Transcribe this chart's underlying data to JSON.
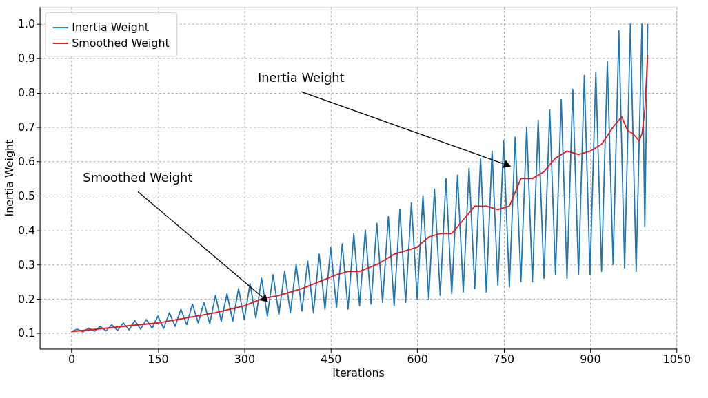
{
  "chart_data": {
    "type": "line",
    "xlabel": "Iterations",
    "ylabel": "Inertia Weight",
    "xlim": [
      -55,
      1050
    ],
    "ylim": [
      0.055,
      1.05
    ],
    "xticks": [
      0,
      150,
      300,
      450,
      600,
      750,
      900,
      {
        "value": 1050,
        "label": "1050"
      }
    ],
    "yticks": [
      0.1,
      0.2,
      0.3,
      0.4,
      0.5,
      0.6,
      0.7,
      0.8,
      0.9,
      {
        "value": 1.0,
        "label": "1.0"
      }
    ],
    "grid": true,
    "legend": "top left",
    "line_style": "solid",
    "marker": "none",
    "series": [
      {
        "name": "Inertia Weight",
        "color": "#1f77b4",
        "x": [
          0,
          10,
          20,
          30,
          40,
          50,
          60,
          70,
          80,
          90,
          100,
          110,
          120,
          130,
          140,
          150,
          160,
          170,
          180,
          190,
          200,
          210,
          220,
          230,
          240,
          250,
          260,
          270,
          280,
          290,
          300,
          310,
          320,
          330,
          340,
          350,
          360,
          370,
          380,
          390,
          400,
          410,
          420,
          430,
          440,
          450,
          460,
          470,
          480,
          490,
          500,
          510,
          520,
          530,
          540,
          550,
          560,
          570,
          580,
          590,
          600,
          610,
          620,
          630,
          640,
          650,
          660,
          670,
          680,
          690,
          700,
          710,
          720,
          730,
          740,
          750,
          760,
          770,
          780,
          790,
          800,
          810,
          820,
          830,
          840,
          850,
          860,
          870,
          880,
          890,
          900,
          910,
          920,
          930,
          940,
          950,
          960,
          970,
          980,
          990,
          995,
          1000
        ],
        "values": [
          0.105,
          0.112,
          0.104,
          0.115,
          0.106,
          0.12,
          0.107,
          0.125,
          0.108,
          0.13,
          0.11,
          0.137,
          0.112,
          0.14,
          0.115,
          0.15,
          0.114,
          0.16,
          0.12,
          0.17,
          0.125,
          0.185,
          0.13,
          0.19,
          0.128,
          0.21,
          0.135,
          0.215,
          0.135,
          0.23,
          0.14,
          0.245,
          0.145,
          0.26,
          0.15,
          0.27,
          0.155,
          0.28,
          0.16,
          0.3,
          0.165,
          0.31,
          0.16,
          0.33,
          0.17,
          0.35,
          0.175,
          0.36,
          0.17,
          0.39,
          0.18,
          0.4,
          0.185,
          0.42,
          0.19,
          0.44,
          0.18,
          0.46,
          0.19,
          0.48,
          0.2,
          0.5,
          0.2,
          0.52,
          0.21,
          0.55,
          0.215,
          0.56,
          0.22,
          0.58,
          0.23,
          0.61,
          0.22,
          0.63,
          0.24,
          0.66,
          0.235,
          0.67,
          0.25,
          0.7,
          0.25,
          0.72,
          0.26,
          0.75,
          0.27,
          0.78,
          0.26,
          0.81,
          0.27,
          0.85,
          0.27,
          0.86,
          0.28,
          0.89,
          0.3,
          0.98,
          0.29,
          1.0,
          0.28,
          1.0,
          0.41,
          1.0
        ]
      },
      {
        "name": "Smoothed Weight",
        "color": "#e31a1c",
        "x": [
          0,
          50,
          100,
          150,
          200,
          250,
          300,
          330,
          360,
          400,
          430,
          460,
          480,
          500,
          530,
          560,
          580,
          600,
          620,
          640,
          660,
          680,
          700,
          720,
          740,
          760,
          780,
          800,
          820,
          840,
          860,
          880,
          900,
          920,
          940,
          955,
          965,
          975,
          985,
          990,
          995,
          1000
        ],
        "values": [
          0.105,
          0.113,
          0.122,
          0.13,
          0.145,
          0.16,
          0.18,
          0.2,
          0.21,
          0.23,
          0.25,
          0.27,
          0.28,
          0.28,
          0.3,
          0.33,
          0.34,
          0.35,
          0.38,
          0.39,
          0.39,
          0.43,
          0.47,
          0.47,
          0.46,
          0.47,
          0.55,
          0.55,
          0.57,
          0.61,
          0.63,
          0.62,
          0.63,
          0.65,
          0.7,
          0.73,
          0.69,
          0.68,
          0.66,
          0.68,
          0.75,
          0.91
        ]
      }
    ],
    "annotations": [
      {
        "text": "Inertia Weight",
        "x": 755,
        "y": 0.59
      },
      {
        "text": "Smoothed Weight",
        "x": 335,
        "y": 0.2
      }
    ]
  }
}
